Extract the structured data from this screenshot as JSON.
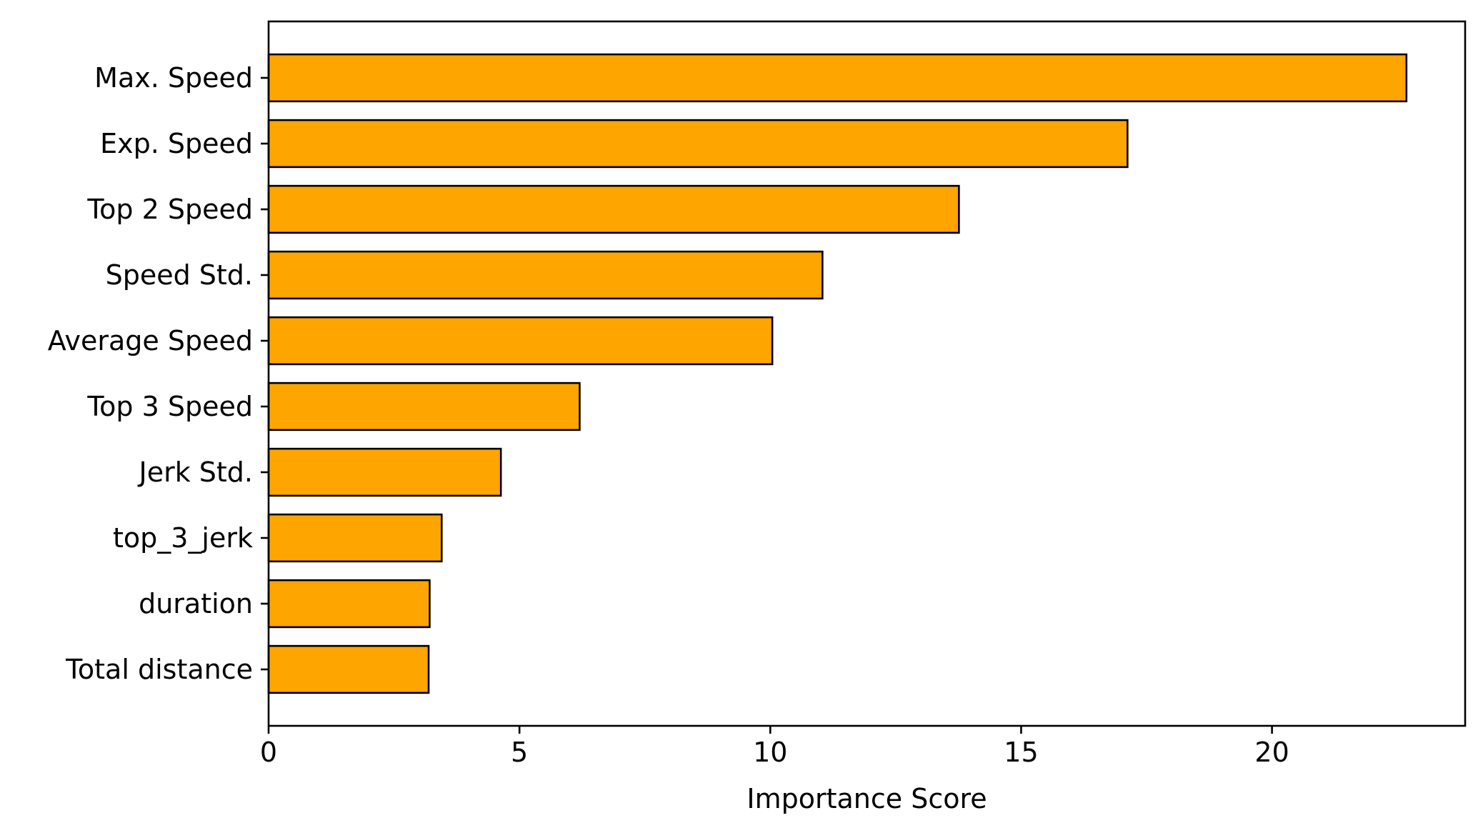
{
  "chart_data": {
    "type": "bar",
    "orientation": "horizontal",
    "categories": [
      "Max. Speed",
      "Exp. Speed",
      "Top 2 Speed",
      "Speed Std.",
      "Average Speed",
      "Top 3 Speed",
      "Jerk Std.",
      "top_3_jerk",
      "duration",
      "Total distance"
    ],
    "values": [
      22.68,
      17.12,
      13.76,
      11.04,
      10.04,
      6.2,
      4.63,
      3.45,
      3.21,
      3.19
    ],
    "title": "",
    "xlabel": "Importance Score",
    "ylabel": "",
    "xlim": [
      0,
      23.85
    ],
    "xticks": [
      0,
      5,
      10,
      15,
      20
    ],
    "xtick_labels": [
      "0",
      "5",
      "10",
      "15",
      "20"
    ],
    "grid": false,
    "legend": false,
    "colors": {
      "bar_fill": "#FFA500",
      "bar_edge": "#000000",
      "axis": "#000000",
      "background": "#FFFFFF"
    }
  }
}
